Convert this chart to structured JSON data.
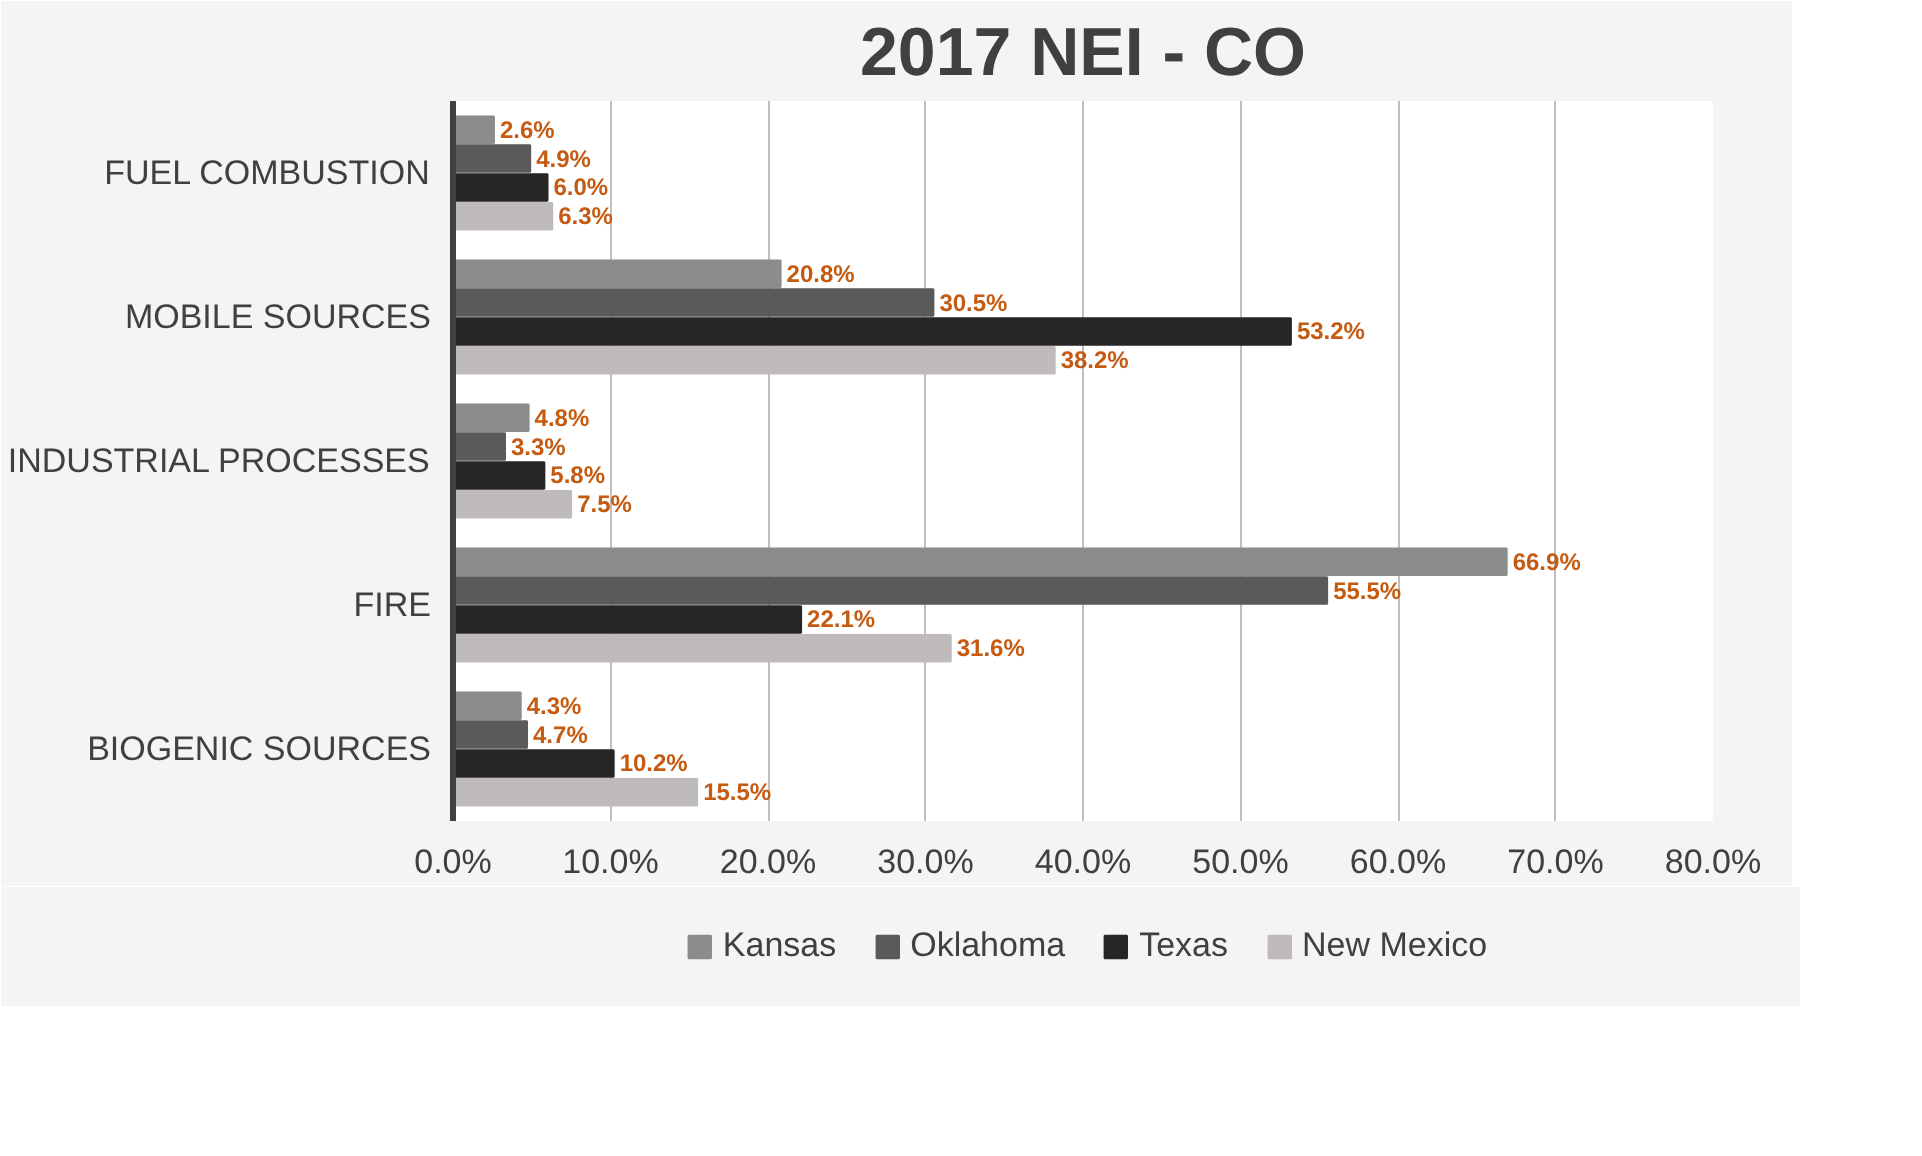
{
  "chart_data": {
    "type": "bar",
    "orientation": "horizontal",
    "title": "2017 NEI - CO",
    "categories": [
      "FUEL COMBUSTION",
      "MOBILE SOURCES",
      "INDUSTRIAL PROCESSES",
      "FIRE",
      "BIOGENIC SOURCES"
    ],
    "series": [
      {
        "name": "Kansas",
        "color": "#8c8c8c",
        "values": [
          2.6,
          20.8,
          4.8,
          66.9,
          4.3
        ],
        "value_labels": [
          "2.6%",
          "20.8%",
          "4.8%",
          "66.9%",
          "4.3%"
        ]
      },
      {
        "name": "Oklahoma",
        "color": "#5a5a5a",
        "values": [
          4.9,
          30.5,
          3.3,
          55.5,
          4.7
        ],
        "value_labels": [
          "4.9%",
          "30.5%",
          "3.3%",
          "55.5%",
          "4.7%"
        ]
      },
      {
        "name": "Texas",
        "color": "#262626",
        "values": [
          6.0,
          53.2,
          5.8,
          22.1,
          10.2
        ],
        "value_labels": [
          "6.0%",
          "53.2%",
          "5.8%",
          "22.1%",
          "10.2%"
        ]
      },
      {
        "name": "New Mexico",
        "color": "#bfbbbb",
        "values": [
          6.3,
          38.2,
          7.5,
          31.6,
          15.5
        ],
        "value_labels": [
          "6.3%",
          "38.2%",
          "7.5%",
          "31.6%",
          "15.5%"
        ]
      }
    ],
    "xlim": [
      0,
      80
    ],
    "xticks": [
      {
        "value": 0,
        "label": "0.0%"
      },
      {
        "value": 10,
        "label": "10.0%"
      },
      {
        "value": 20,
        "label": "20.0%"
      },
      {
        "value": 30,
        "label": "30.0%"
      },
      {
        "value": 40,
        "label": "40.0%"
      },
      {
        "value": 50,
        "label": "50.0%"
      },
      {
        "value": 60,
        "label": "60.0%"
      },
      {
        "value": 70,
        "label": "70.0%"
      },
      {
        "value": 80,
        "label": "80.0%"
      }
    ],
    "grid": "x",
    "legend": "bottom"
  }
}
